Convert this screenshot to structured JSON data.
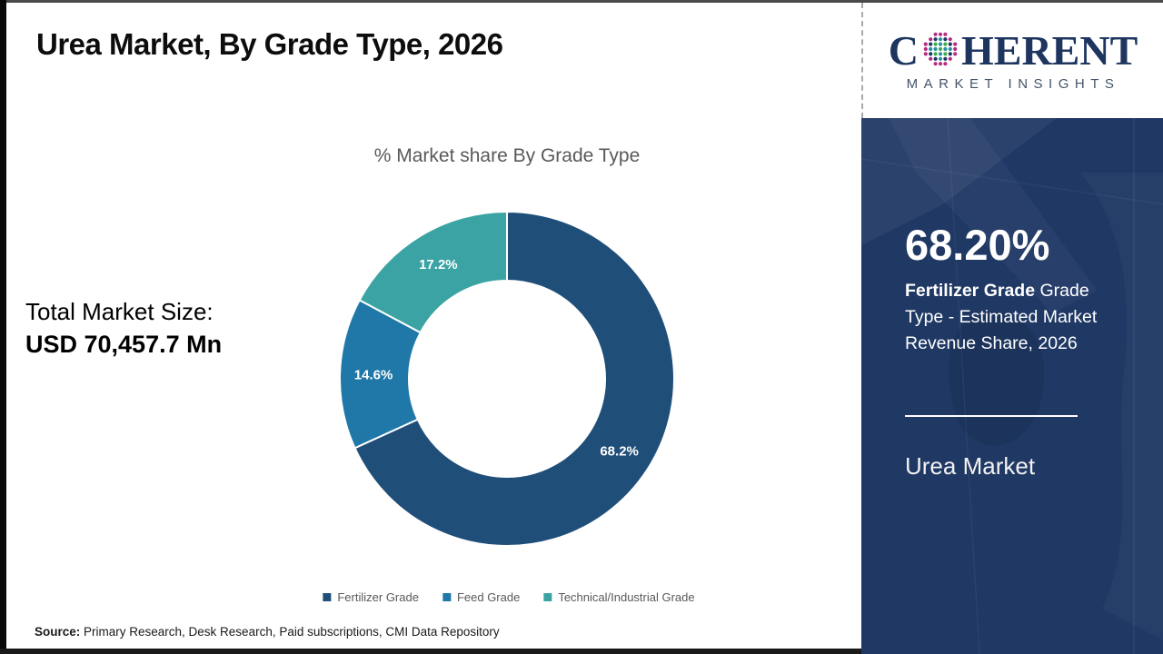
{
  "title": "Urea Market, By Grade Type, 2026",
  "logo": {
    "prefix": "C",
    "suffix": "HERENT",
    "tagline": "MARKET INSIGHTS"
  },
  "left_panel": {
    "total_label": "Total Market Size:",
    "total_value": "USD 70,457.7 Mn"
  },
  "chart_data": {
    "type": "pie",
    "donut": true,
    "title": "% Market share By Grade Type",
    "categories": [
      "Fertilizer Grade",
      "Feed Grade",
      "Technical/Industrial Grade"
    ],
    "values": [
      68.2,
      14.6,
      17.2
    ],
    "value_labels": [
      "68.2%",
      "14.6%",
      "17.2%"
    ],
    "colors": [
      "#1f4e79",
      "#1f78a8",
      "#3ba3a3"
    ],
    "legend_position": "bottom",
    "start_angle_deg": 0,
    "direction": "clockwise"
  },
  "side_panel": {
    "stat_value": "68.20%",
    "stat_desc_bold": "Fertilizer Grade",
    "stat_desc_rest": " Grade Type - Estimated Market Revenue Share, 2026",
    "market_name": "Urea Market",
    "bg_color": "#1f3864"
  },
  "footer": {
    "source_label": "Source:",
    "source_text": " Primary Research, Desk Research, Paid subscriptions, CMI Data Repository"
  }
}
